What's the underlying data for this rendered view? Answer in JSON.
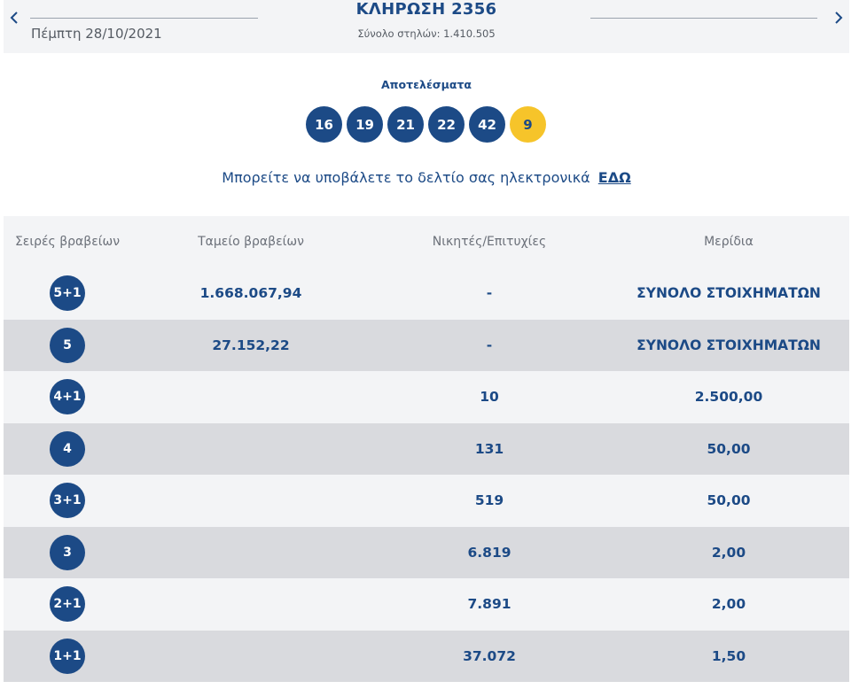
{
  "header": {
    "date": "Πέμπτη 28/10/2021",
    "draw_title": "ΚΛΗΡΩΣΗ 2356",
    "draw_subtitle": "Σύνολο στηλών: 1.410.505"
  },
  "results": {
    "label": "Αποτελέσματα",
    "numbers": [
      "16",
      "19",
      "21",
      "22",
      "42"
    ],
    "bonus": "9"
  },
  "submit": {
    "text": "Μπορείτε να υποβάλετε το δελτίο σας ηλεκτρονικά",
    "link": "ΕΔΩ"
  },
  "colors": {
    "primary": "#1c4a86",
    "bonus": "#f6c42a",
    "row_light": "#f3f4f6",
    "row_dark": "#d9dade"
  },
  "table": {
    "headers": [
      "Σειρές βραβείων",
      "Ταμείο βραβείων",
      "Νικητές/Επιτυχίες",
      "Μερίδια"
    ],
    "rows": [
      {
        "tier": "5+1",
        "fund": "1.668.067,94",
        "winners": "-",
        "share": "ΣΥΝΟΛΟ ΣΤΟΙΧΗΜΑΤΩΝ"
      },
      {
        "tier": "5",
        "fund": "27.152,22",
        "winners": "-",
        "share": "ΣΥΝΟΛΟ ΣΤΟΙΧΗΜΑΤΩΝ"
      },
      {
        "tier": "4+1",
        "fund": "",
        "winners": "10",
        "share": "2.500,00"
      },
      {
        "tier": "4",
        "fund": "",
        "winners": "131",
        "share": "50,00"
      },
      {
        "tier": "3+1",
        "fund": "",
        "winners": "519",
        "share": "50,00"
      },
      {
        "tier": "3",
        "fund": "",
        "winners": "6.819",
        "share": "2,00"
      },
      {
        "tier": "2+1",
        "fund": "",
        "winners": "7.891",
        "share": "2,00"
      },
      {
        "tier": "1+1",
        "fund": "",
        "winners": "37.072",
        "share": "1,50"
      }
    ]
  }
}
